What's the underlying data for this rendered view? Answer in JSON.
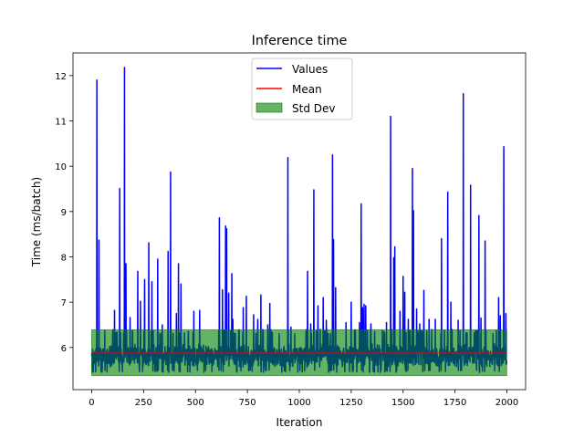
{
  "chart_data": {
    "type": "line",
    "title": "Inference time",
    "xlabel": "Iteration",
    "ylabel": "Time (ms/batch)",
    "xlim": [
      -90,
      2090
    ],
    "ylim": [
      5.07,
      12.5
    ],
    "xticks": [
      0,
      250,
      500,
      750,
      1000,
      1250,
      1500,
      1750,
      2000
    ],
    "yticks": [
      6,
      7,
      8,
      9,
      10,
      11,
      12
    ],
    "grid": false,
    "legend_position": "top-center",
    "n_points": 2000,
    "baseline_value": 5.82,
    "baseline_range": [
      5.45,
      6.35
    ],
    "spikes": [
      {
        "x": 25,
        "y": 11.9
      },
      {
        "x": 35,
        "y": 8.37
      },
      {
        "x": 110,
        "y": 6.82
      },
      {
        "x": 135,
        "y": 9.51
      },
      {
        "x": 158,
        "y": 12.18
      },
      {
        "x": 165,
        "y": 7.85
      },
      {
        "x": 185,
        "y": 6.66
      },
      {
        "x": 222,
        "y": 7.68
      },
      {
        "x": 235,
        "y": 7.02
      },
      {
        "x": 255,
        "y": 7.5
      },
      {
        "x": 275,
        "y": 8.31
      },
      {
        "x": 290,
        "y": 7.45
      },
      {
        "x": 318,
        "y": 7.95
      },
      {
        "x": 340,
        "y": 6.5
      },
      {
        "x": 368,
        "y": 8.12
      },
      {
        "x": 380,
        "y": 9.87
      },
      {
        "x": 408,
        "y": 6.75
      },
      {
        "x": 418,
        "y": 7.85
      },
      {
        "x": 430,
        "y": 7.4
      },
      {
        "x": 465,
        "y": 6.35
      },
      {
        "x": 492,
        "y": 6.8
      },
      {
        "x": 520,
        "y": 6.82
      },
      {
        "x": 615,
        "y": 8.86
      },
      {
        "x": 630,
        "y": 7.27
      },
      {
        "x": 645,
        "y": 8.68
      },
      {
        "x": 650,
        "y": 8.62
      },
      {
        "x": 660,
        "y": 7.2
      },
      {
        "x": 675,
        "y": 7.63
      },
      {
        "x": 680,
        "y": 6.62
      },
      {
        "x": 730,
        "y": 6.88
      },
      {
        "x": 745,
        "y": 7.13
      },
      {
        "x": 780,
        "y": 6.72
      },
      {
        "x": 800,
        "y": 6.62
      },
      {
        "x": 815,
        "y": 7.16
      },
      {
        "x": 848,
        "y": 6.5
      },
      {
        "x": 858,
        "y": 6.97
      },
      {
        "x": 945,
        "y": 10.19
      },
      {
        "x": 960,
        "y": 6.45
      },
      {
        "x": 1040,
        "y": 7.68
      },
      {
        "x": 1055,
        "y": 6.52
      },
      {
        "x": 1070,
        "y": 9.48
      },
      {
        "x": 1090,
        "y": 6.92
      },
      {
        "x": 1115,
        "y": 7.1
      },
      {
        "x": 1130,
        "y": 6.6
      },
      {
        "x": 1160,
        "y": 10.25
      },
      {
        "x": 1165,
        "y": 8.38
      },
      {
        "x": 1175,
        "y": 7.32
      },
      {
        "x": 1225,
        "y": 6.55
      },
      {
        "x": 1250,
        "y": 7.0
      },
      {
        "x": 1290,
        "y": 6.55
      },
      {
        "x": 1298,
        "y": 9.17
      },
      {
        "x": 1305,
        "y": 6.88
      },
      {
        "x": 1312,
        "y": 6.95
      },
      {
        "x": 1320,
        "y": 6.92
      },
      {
        "x": 1345,
        "y": 6.52
      },
      {
        "x": 1420,
        "y": 6.55
      },
      {
        "x": 1440,
        "y": 11.1
      },
      {
        "x": 1455,
        "y": 7.98
      },
      {
        "x": 1460,
        "y": 8.22
      },
      {
        "x": 1485,
        "y": 6.8
      },
      {
        "x": 1500,
        "y": 7.57
      },
      {
        "x": 1508,
        "y": 7.22
      },
      {
        "x": 1525,
        "y": 6.62
      },
      {
        "x": 1545,
        "y": 9.95
      },
      {
        "x": 1550,
        "y": 9.02
      },
      {
        "x": 1565,
        "y": 6.85
      },
      {
        "x": 1580,
        "y": 6.52
      },
      {
        "x": 1600,
        "y": 7.26
      },
      {
        "x": 1625,
        "y": 6.62
      },
      {
        "x": 1655,
        "y": 6.62
      },
      {
        "x": 1685,
        "y": 8.4
      },
      {
        "x": 1715,
        "y": 9.43
      },
      {
        "x": 1730,
        "y": 7.0
      },
      {
        "x": 1765,
        "y": 6.6
      },
      {
        "x": 1790,
        "y": 11.6
      },
      {
        "x": 1825,
        "y": 9.58
      },
      {
        "x": 1865,
        "y": 8.91
      },
      {
        "x": 1875,
        "y": 6.65
      },
      {
        "x": 1895,
        "y": 8.35
      },
      {
        "x": 1960,
        "y": 7.1
      },
      {
        "x": 1968,
        "y": 6.7
      },
      {
        "x": 1985,
        "y": 10.43
      },
      {
        "x": 1995,
        "y": 6.75
      }
    ],
    "series": [
      {
        "name": "Values",
        "color": "#0000ff",
        "type": "line"
      },
      {
        "name": "Mean",
        "color": "#ff0000",
        "type": "hline",
        "value": 5.88
      },
      {
        "name": "Std Dev",
        "color": "#008000",
        "type": "band",
        "lower": 5.38,
        "upper": 6.39,
        "alpha": 0.6
      }
    ]
  }
}
